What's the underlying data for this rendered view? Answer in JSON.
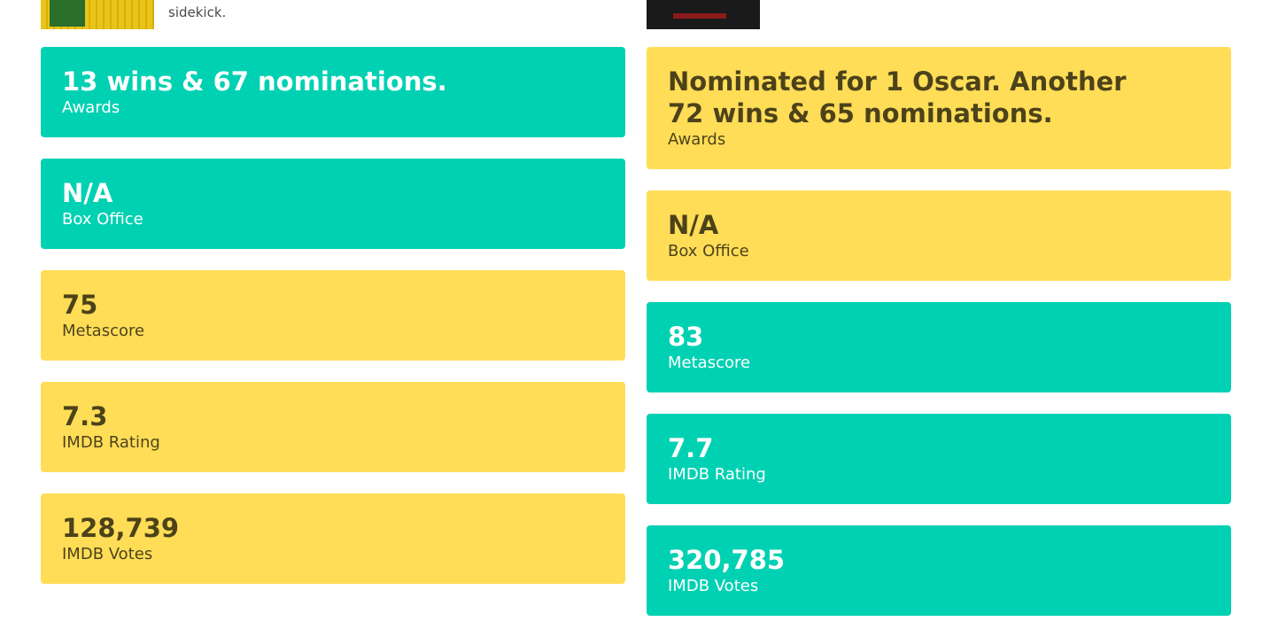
{
  "left": {
    "summary": "sidekick.",
    "stats": [
      {
        "value": "13 wins & 67 nominations.",
        "label": "Awards",
        "color": "#00d1b2"
      },
      {
        "value": "N/A",
        "label": "Box Office",
        "color": "#00d1b2"
      },
      {
        "value": "75",
        "label": "Metascore",
        "color": "#ffdd57"
      },
      {
        "value": "7.3",
        "label": "IMDB Rating",
        "color": "#ffdd57"
      },
      {
        "value": "128,739",
        "label": "IMDB Votes",
        "color": "#ffdd57"
      }
    ]
  },
  "right": {
    "stats": [
      {
        "value": "Nominated for 1 Oscar. Another 72 wins & 65 nominations.",
        "label": "Awards",
        "color": "#ffdd57"
      },
      {
        "value": "N/A",
        "label": "Box Office",
        "color": "#ffdd57"
      },
      {
        "value": "83",
        "label": "Metascore",
        "color": "#00d1b2"
      },
      {
        "value": "7.7",
        "label": "IMDB Rating",
        "color": "#00d1b2"
      },
      {
        "value": "320,785",
        "label": "IMDB Votes",
        "color": "#00d1b2"
      }
    ]
  }
}
